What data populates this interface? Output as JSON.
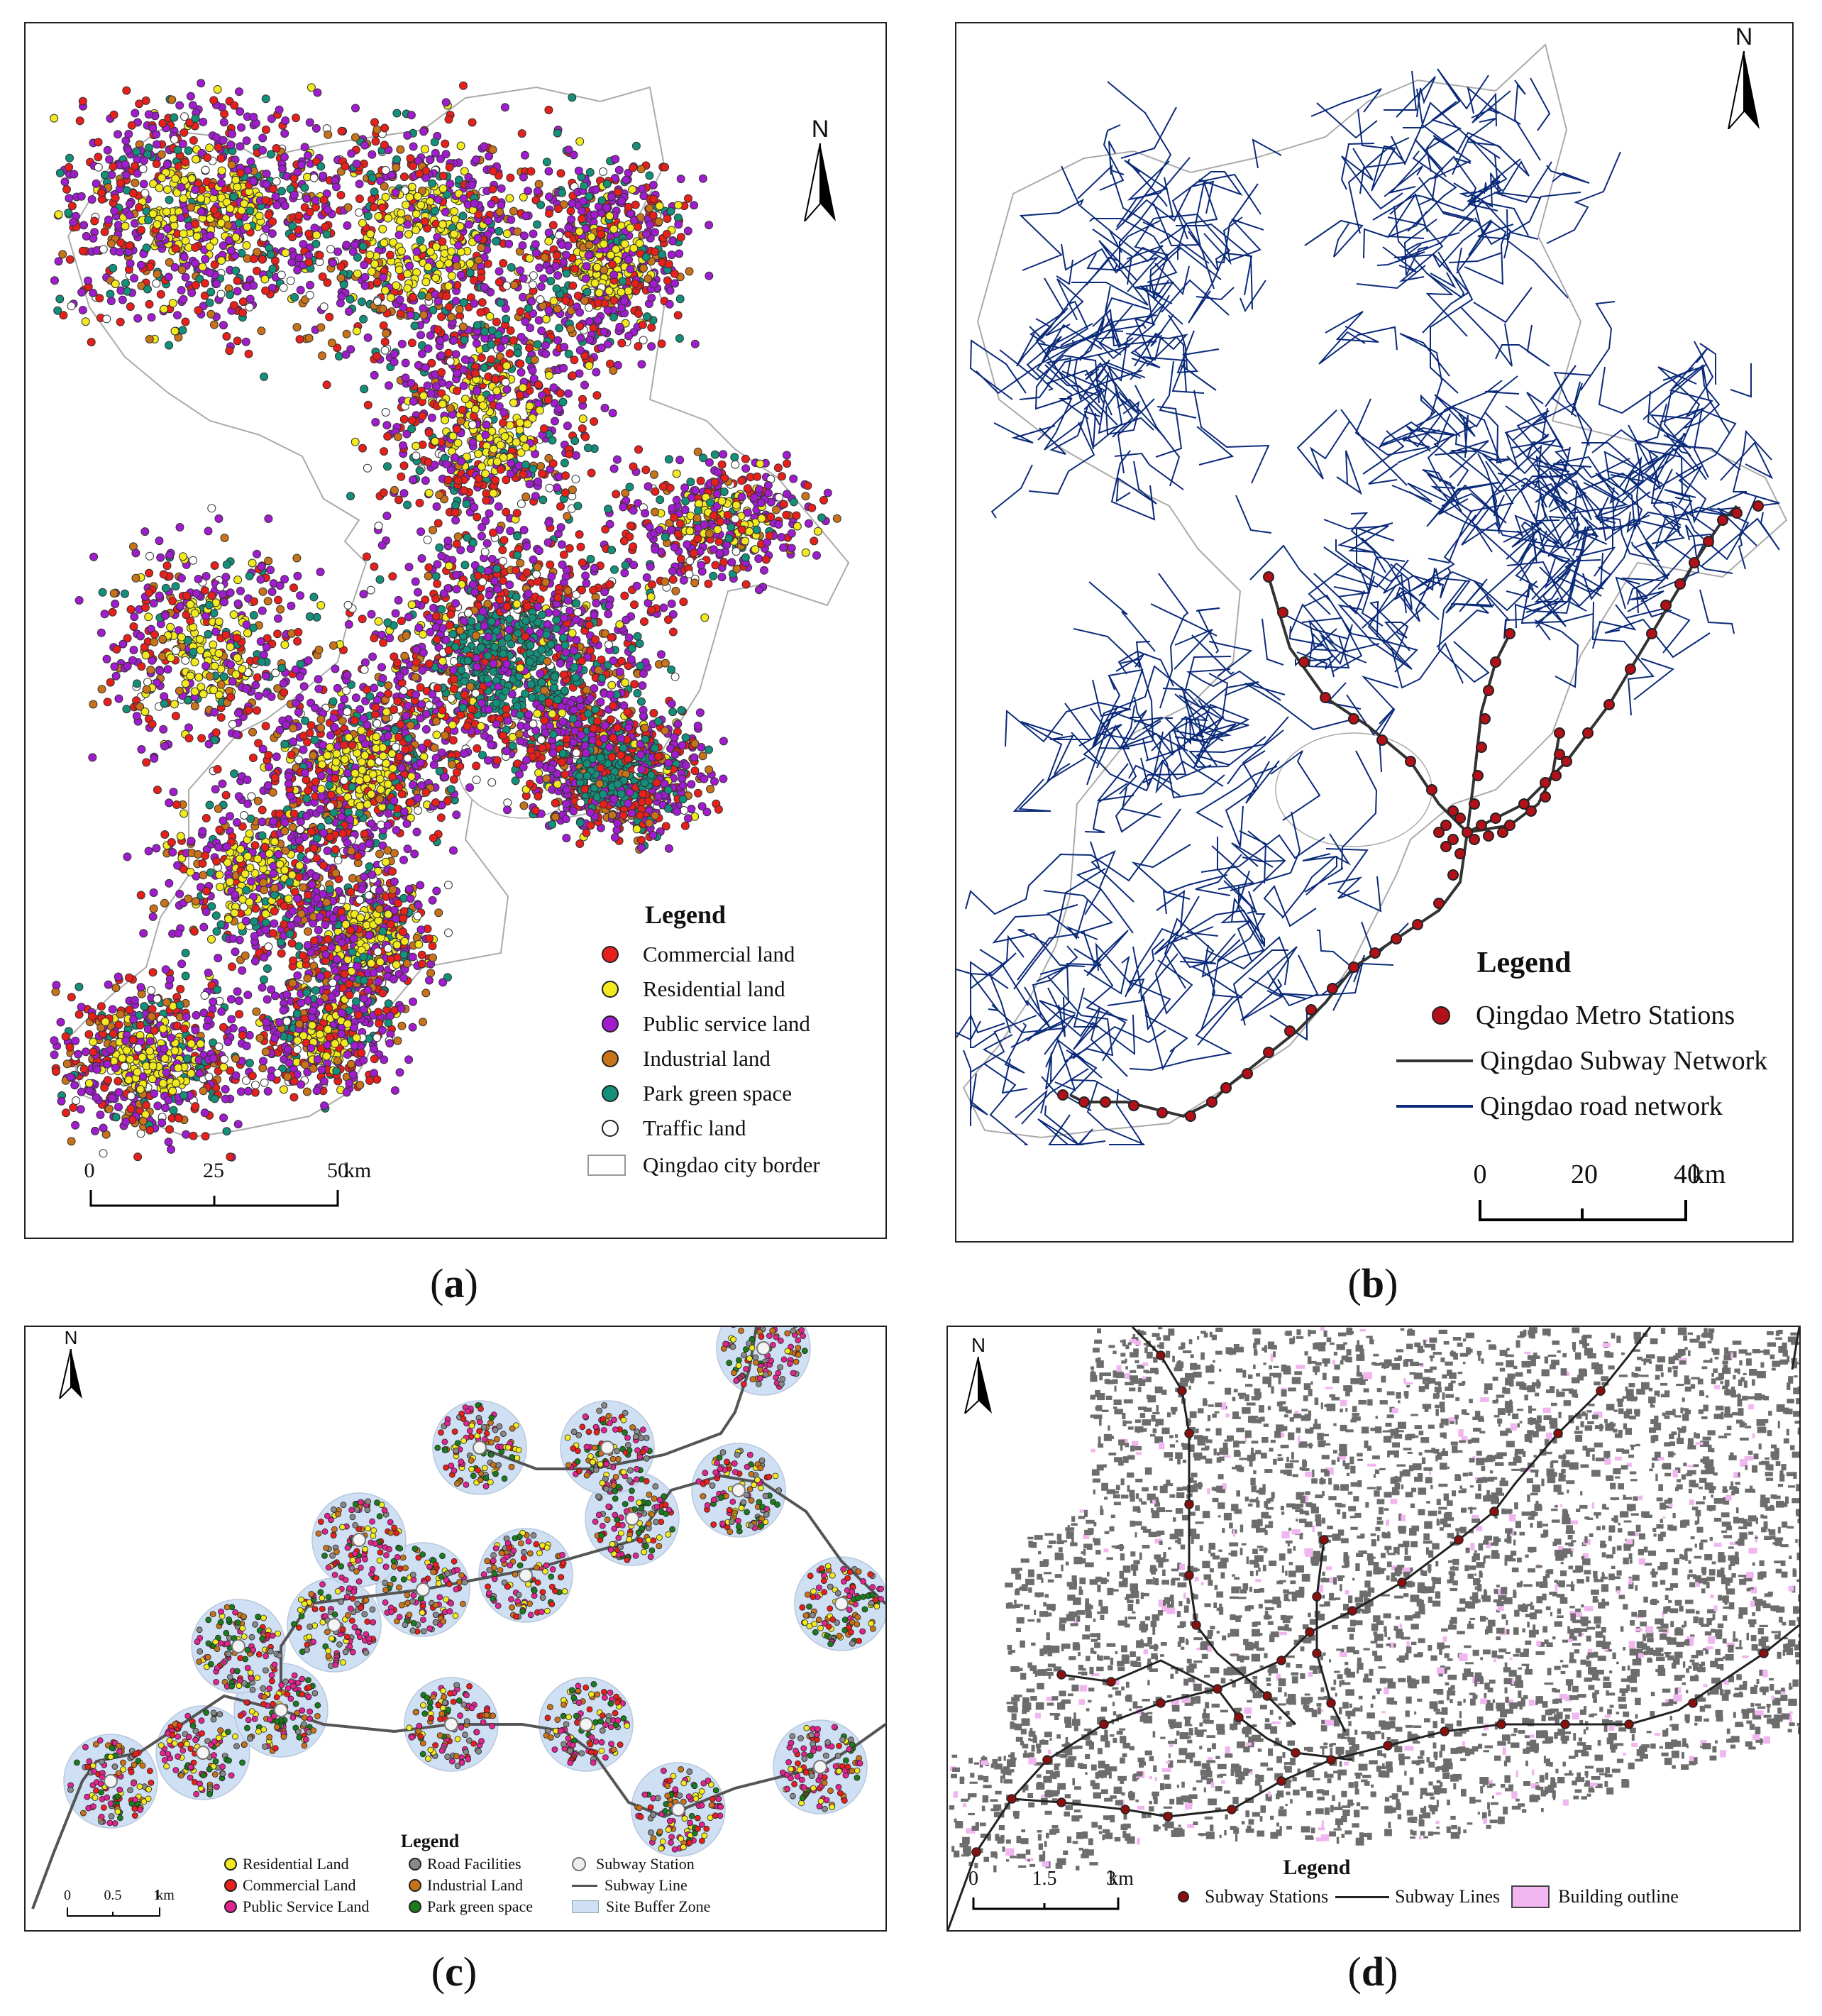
{
  "colors": {
    "commercial": "#e8201c",
    "residential": "#f2ea1e",
    "public_service": "#a21ccf",
    "industrial": "#c8731a",
    "park": "#138f7a",
    "traffic": "#ffffff",
    "road": "#0b2a7a",
    "subway": "#333333",
    "metro_station": "#b3111a",
    "buffer": "#cfe0f5",
    "building": "#6d6d6d",
    "building_outline": "#f1b5f0",
    "border": "#aaaaaa"
  },
  "panel_a": {
    "caption_label": "a",
    "north": "N",
    "legend": {
      "title": "Legend",
      "items": [
        {
          "label": "Commercial land",
          "color_key": "commercial"
        },
        {
          "label": "Residential land",
          "color_key": "residential"
        },
        {
          "label": "Public service land",
          "color_key": "public_service"
        },
        {
          "label": "Industrial land",
          "color_key": "industrial"
        },
        {
          "label": "Park green space",
          "color_key": "park"
        },
        {
          "label": "Traffic land",
          "color_key": "traffic"
        },
        {
          "label": "Qingdao city border",
          "color_key": "border"
        }
      ]
    },
    "scale": {
      "ticks": [
        "0",
        "25",
        "50"
      ],
      "unit": "km"
    }
  },
  "panel_b": {
    "caption_label": "b",
    "north": "N",
    "legend": {
      "title": "Legend",
      "items": [
        {
          "label": "Qingdao Metro Stations",
          "symbol": "dot"
        },
        {
          "label": "Qingdao Subway Network",
          "symbol": "line-dark"
        },
        {
          "label": "Qingdao road network",
          "symbol": "line-blue"
        }
      ]
    },
    "scale": {
      "ticks": [
        "0",
        "20",
        "40"
      ],
      "unit": "km"
    }
  },
  "panel_c": {
    "caption_label": "c",
    "north": "N",
    "legend": {
      "title": "Legend",
      "items": [
        {
          "label": "Residential Land",
          "color_key": "residential"
        },
        {
          "label": "Road Facilities",
          "color_key": "road_fac"
        },
        {
          "label": "Subway Station",
          "color_key": "station"
        },
        {
          "label": "Commercial Land",
          "color_key": "commercial"
        },
        {
          "label": "Industrial Land",
          "color_key": "industrial"
        },
        {
          "label": "Subway Line",
          "color_key": "line"
        },
        {
          "label": "Public Service Land",
          "color_key": "public_service"
        },
        {
          "label": "Park green space",
          "color_key": "park"
        },
        {
          "label": "Site Buffer Zone",
          "color_key": "buffer"
        }
      ]
    },
    "scale": {
      "ticks": [
        "0",
        "0.5",
        "1"
      ],
      "unit": "km"
    }
  },
  "panel_d": {
    "caption_label": "d",
    "north": "N",
    "legend": {
      "title": "Legend",
      "items": [
        {
          "label": "Subway Stations"
        },
        {
          "label": "Subway Lines"
        },
        {
          "label": "Building outline"
        }
      ]
    },
    "scale": {
      "ticks": [
        "0",
        "1.5",
        "3"
      ],
      "unit": "km"
    }
  }
}
